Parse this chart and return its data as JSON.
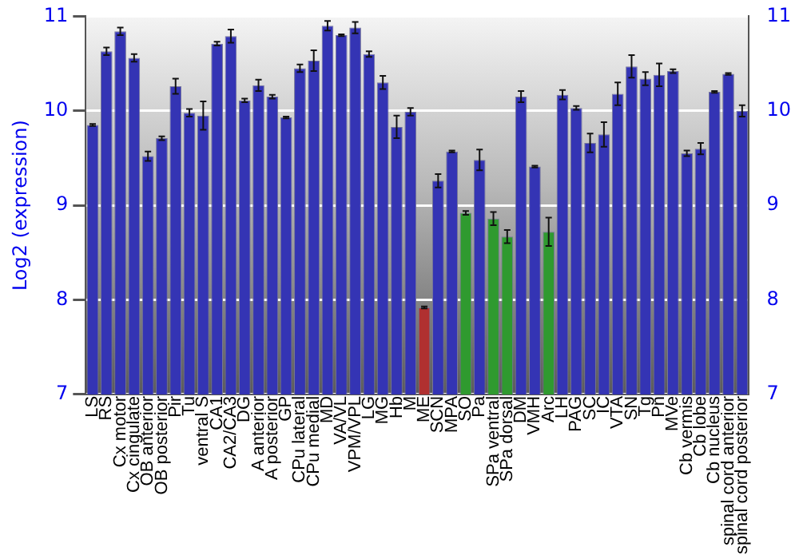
{
  "chart_data": {
    "type": "bar",
    "ylabel": "Log2 (expression)",
    "categories": [
      "LS",
      "RS",
      "Cx motor",
      "Cx cingulate",
      "OB anterior",
      "OB posterior",
      "Pir",
      "Tu",
      "ventral S",
      "CA1",
      "CA2/CA3",
      "DG",
      "A anterior",
      "A posterior",
      "GP",
      "CPu lateral",
      "CPu medial",
      "MD",
      "VA/VL",
      "VPM/VPL",
      "LG",
      "MG",
      "Hb",
      "M",
      "ME",
      "SCN",
      "MPA",
      "SO",
      "Pa",
      "SPa ventral",
      "SPa dorsal",
      "DM",
      "VMH",
      "Arc",
      "LH",
      "PAG",
      "SC",
      "IC",
      "VTA",
      "SN",
      "Tg",
      "Pn",
      "MVe",
      "Cb vermis",
      "Cb lobe",
      "Cb nucleus",
      "spinal cord anterior",
      "spinal cord posterior"
    ],
    "values": [
      9.85,
      10.63,
      10.84,
      10.56,
      9.52,
      9.71,
      10.26,
      9.98,
      9.95,
      10.71,
      10.79,
      10.11,
      10.27,
      10.15,
      9.93,
      10.45,
      10.53,
      10.9,
      10.8,
      10.88,
      10.6,
      10.3,
      9.83,
      9.99,
      7.92,
      9.26,
      9.57,
      8.92,
      9.48,
      8.86,
      8.67,
      10.15,
      9.41,
      8.72,
      10.17,
      10.03,
      9.66,
      9.75,
      10.18,
      10.47,
      10.34,
      10.38,
      10.42,
      9.55,
      9.6,
      10.2,
      10.39,
      10.0
    ],
    "errors": [
      0.01,
      0.04,
      0.04,
      0.04,
      0.05,
      0.02,
      0.08,
      0.04,
      0.15,
      0.02,
      0.07,
      0.02,
      0.06,
      0.02,
      0.01,
      0.04,
      0.11,
      0.05,
      0.01,
      0.06,
      0.03,
      0.07,
      0.12,
      0.04,
      0.01,
      0.07,
      0.01,
      0.02,
      0.11,
      0.07,
      0.07,
      0.06,
      0.01,
      0.15,
      0.05,
      0.02,
      0.1,
      0.13,
      0.12,
      0.12,
      0.07,
      0.12,
      0.02,
      0.03,
      0.06,
      0.01,
      0.01,
      0.06
    ],
    "colors": [
      "#3434b4",
      "#3434b4",
      "#3434b4",
      "#3434b4",
      "#3434b4",
      "#3434b4",
      "#3434b4",
      "#3434b4",
      "#3434b4",
      "#3434b4",
      "#3434b4",
      "#3434b4",
      "#3434b4",
      "#3434b4",
      "#3434b4",
      "#3434b4",
      "#3434b4",
      "#3434b4",
      "#3434b4",
      "#3434b4",
      "#3434b4",
      "#3434b4",
      "#3434b4",
      "#3434b4",
      "#b03030",
      "#3434b4",
      "#3434b4",
      "#2f9a2f",
      "#3434b4",
      "#2f9a2f",
      "#2f9a2f",
      "#3434b4",
      "#3434b4",
      "#2f9a2f",
      "#3434b4",
      "#3434b4",
      "#3434b4",
      "#3434b4",
      "#3434b4",
      "#3434b4",
      "#3434b4",
      "#3434b4",
      "#3434b4",
      "#3434b4",
      "#3434b4",
      "#3434b4",
      "#3434b4",
      "#3434b4"
    ],
    "ylim": [
      7,
      11
    ],
    "yticks": [
      7,
      8,
      9,
      10,
      11
    ],
    "y2lim": [
      7,
      11
    ],
    "y2ticks": [
      7,
      8,
      9,
      10,
      11
    ],
    "grid": "y",
    "legend": false
  }
}
